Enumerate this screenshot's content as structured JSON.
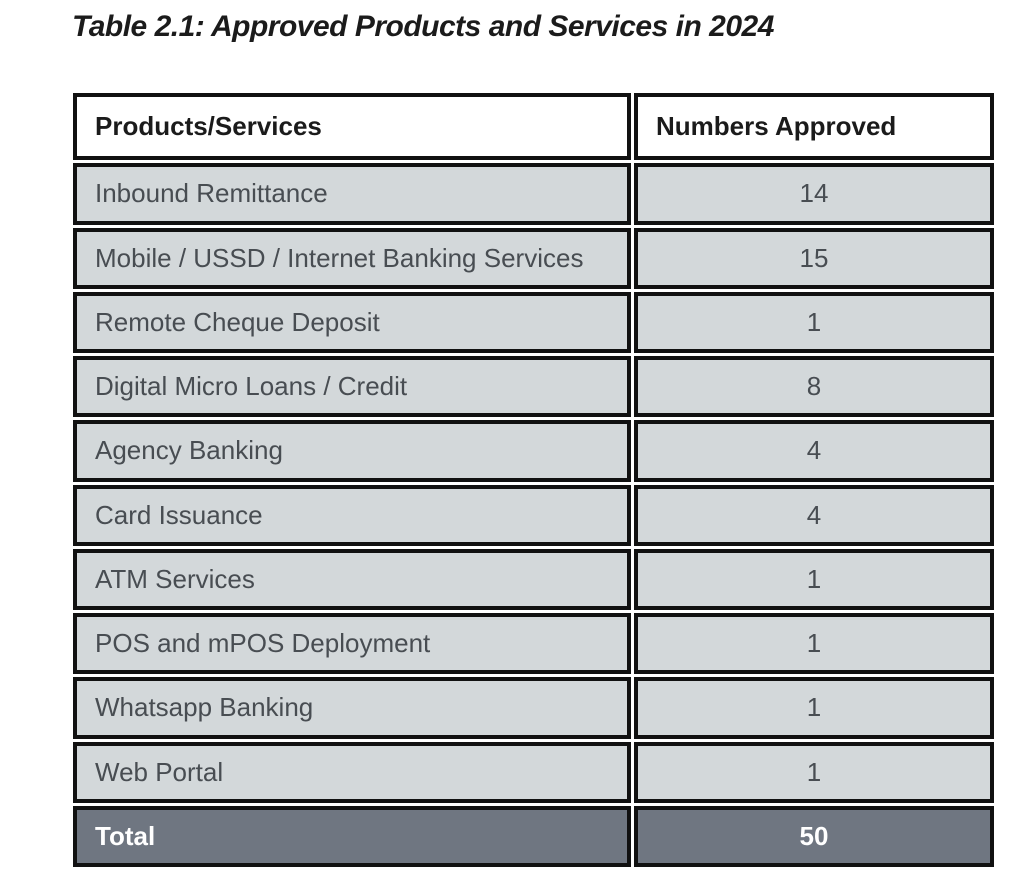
{
  "title": "Table 2.1: Approved Products and Services in 2024",
  "table": {
    "columns": [
      "Products/Services",
      "Numbers Approved"
    ],
    "rows": [
      {
        "product": "Inbound Remittance",
        "approved": "14"
      },
      {
        "product": "Mobile / USSD / Internet Banking Services",
        "approved": "15"
      },
      {
        "product": "Remote Cheque Deposit",
        "approved": "1"
      },
      {
        "product": "Digital Micro Loans / Credit",
        "approved": "8"
      },
      {
        "product": "Agency Banking",
        "approved": "4"
      },
      {
        "product": "Card Issuance",
        "approved": "4"
      },
      {
        "product": "ATM Services",
        "approved": "1"
      },
      {
        "product": "POS and mPOS Deployment",
        "approved": "1"
      },
      {
        "product": "Whatsapp Banking",
        "approved": "1"
      },
      {
        "product": "Web Portal",
        "approved": "1"
      }
    ],
    "total_label": "Total",
    "total_value": "50"
  },
  "colors": {
    "border": "#111111",
    "row_background": "#d3d8da",
    "header_background": "#ffffff",
    "total_background": "#6f7681",
    "title_text": "#1b1b1b",
    "body_text": "#484d52",
    "total_text": "#ffffff",
    "page_background": "#ffffff"
  }
}
